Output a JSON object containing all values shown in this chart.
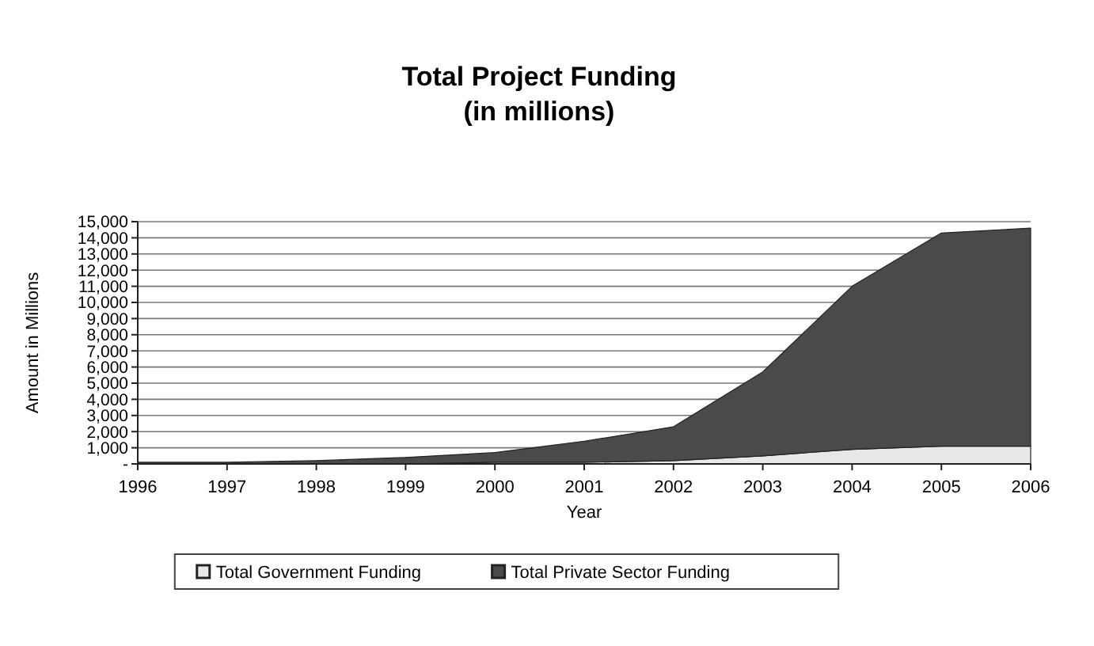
{
  "chart_data": {
    "type": "area",
    "title": "Total Project Funding",
    "subtitle": "(in millions)",
    "xlabel": "Year",
    "ylabel": "Amount in Millions",
    "stacked": true,
    "x": [
      1996,
      1997,
      1998,
      1999,
      2000,
      2001,
      2002,
      2003,
      2004,
      2005,
      2006
    ],
    "series": [
      {
        "name": "Total Government Funding",
        "color": "#e8e8e8",
        "values": [
          0,
          0,
          0,
          0,
          100,
          100,
          200,
          500,
          900,
          1100,
          1100
        ]
      },
      {
        "name": "Total Private Sector Funding",
        "color": "#4a4a4a",
        "values": [
          100,
          100,
          200,
          400,
          600,
          1300,
          2100,
          5200,
          10100,
          13200,
          13500
        ]
      }
    ],
    "xlim": [
      1996,
      2006
    ],
    "xticks": [
      1996,
      1997,
      1998,
      1999,
      2000,
      2001,
      2002,
      2003,
      2004,
      2005,
      2006
    ],
    "ylim": [
      0,
      15000
    ],
    "yticks": [
      {
        "value": 0,
        "label": "-"
      },
      {
        "value": 1000,
        "label": "1,000"
      },
      {
        "value": 2000,
        "label": "2,000"
      },
      {
        "value": 3000,
        "label": "3,000"
      },
      {
        "value": 4000,
        "label": "4,000"
      },
      {
        "value": 5000,
        "label": "5,000"
      },
      {
        "value": 6000,
        "label": "6,000"
      },
      {
        "value": 7000,
        "label": "7,000"
      },
      {
        "value": 8000,
        "label": "8,000"
      },
      {
        "value": 9000,
        "label": "9,000"
      },
      {
        "value": 10000,
        "label": "10,000"
      },
      {
        "value": 11000,
        "label": "11,000"
      },
      {
        "value": 12000,
        "label": "12,000"
      },
      {
        "value": 13000,
        "label": "13,000"
      },
      {
        "value": 14000,
        "label": "14,000"
      },
      {
        "value": 15000,
        "label": "15,000"
      }
    ],
    "grid": "y",
    "legend": "bottom"
  }
}
